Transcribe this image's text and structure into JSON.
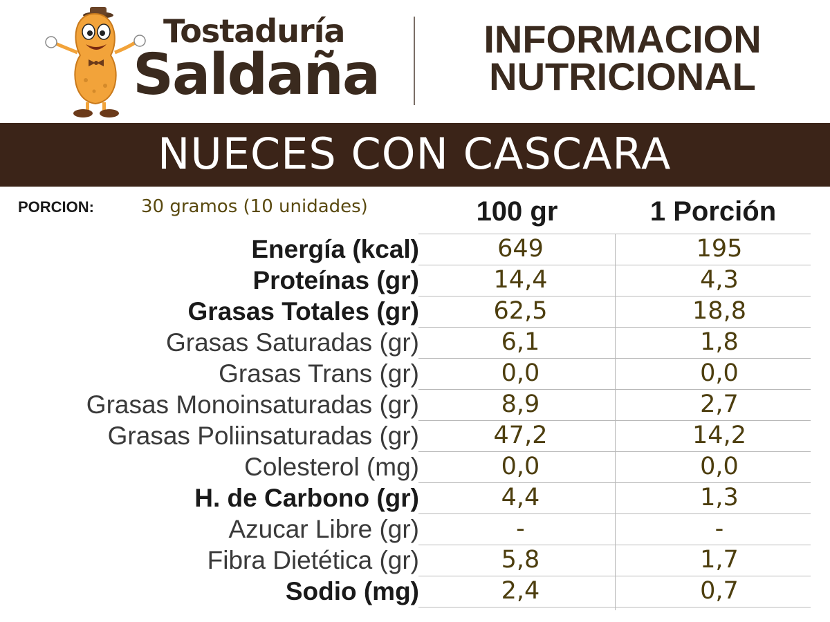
{
  "brand": {
    "line1": "Tostaduría",
    "line2": "Saldaña"
  },
  "info_title": {
    "line1": "INFORMACION",
    "line2": "NUTRICIONAL"
  },
  "product": "NUECES CON CASCARA",
  "portion": {
    "label": "PORCION:",
    "value": "30 gramos (10 unidades)"
  },
  "columns": [
    "100 gr",
    "1 Porción"
  ],
  "rows": [
    {
      "label": "Energía (kcal)",
      "bold": true,
      "v100": "649",
      "vPortion": "195"
    },
    {
      "label": "Proteínas (gr)",
      "bold": true,
      "v100": "14,4",
      "vPortion": "4,3"
    },
    {
      "label": "Grasas Totales (gr)",
      "bold": true,
      "v100": "62,5",
      "vPortion": "18,8"
    },
    {
      "label": "Grasas Saturadas (gr)",
      "bold": false,
      "v100": "6,1",
      "vPortion": "1,8"
    },
    {
      "label": "Grasas Trans (gr)",
      "bold": false,
      "v100": "0,0",
      "vPortion": "0,0"
    },
    {
      "label": "Grasas Monoinsaturadas (gr)",
      "bold": false,
      "v100": "8,9",
      "vPortion": "2,7"
    },
    {
      "label": "Grasas Poliinsaturadas (gr)",
      "bold": false,
      "v100": "47,2",
      "vPortion": "14,2"
    },
    {
      "label": "Colesterol (mg)",
      "bold": false,
      "v100": "0,0",
      "vPortion": "0,0"
    },
    {
      "label": "H. de Carbono (gr)",
      "bold": true,
      "v100": "4,4",
      "vPortion": "1,3"
    },
    {
      "label": "Azucar Libre (gr)",
      "bold": false,
      "v100": "-",
      "vPortion": "-"
    },
    {
      "label": "Fibra Dietética (gr)",
      "bold": false,
      "v100": "5,8",
      "vPortion": "1,7"
    },
    {
      "label": "Sodio (mg)",
      "bold": true,
      "v100": "2,4",
      "vPortion": "0,7"
    }
  ],
  "colors": {
    "banner": "#3b2418",
    "brand_text": "#3a2a1e",
    "value_text": "#4d3e0e"
  },
  "icons": {
    "mascot": "peanut-mascot-icon"
  }
}
